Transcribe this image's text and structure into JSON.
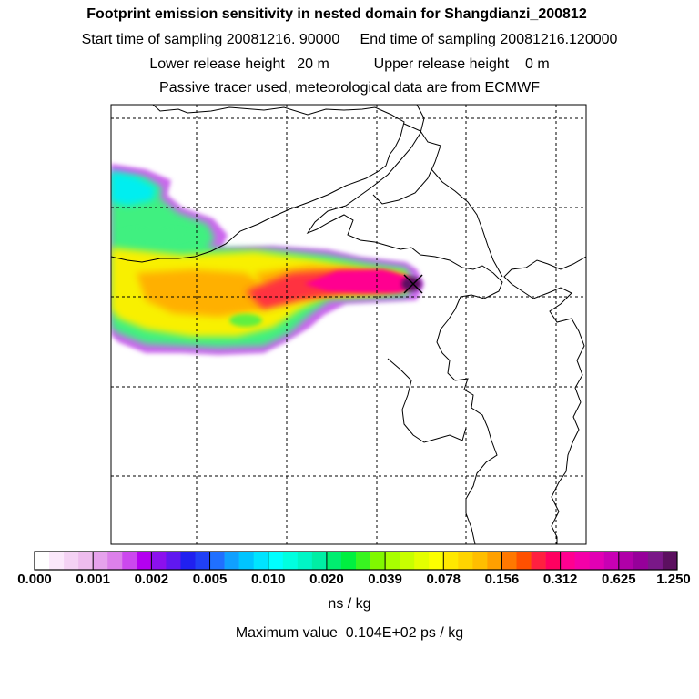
{
  "title": "Footprint emission sensitivity in nested domain for Shangdianzi_200812",
  "sampling_line": "Start time of sampling 20081216. 90000     End time of sampling 20081216.120000",
  "release_line": "Lower release height   20 m           Upper release height    0 m",
  "tracer_line": "Passive tracer used, meteorological data are from ECMWF",
  "colorbar": {
    "tick_labels": [
      "0.000",
      "0.001",
      "0.002",
      "0.005",
      "0.010",
      "0.020",
      "0.039",
      "0.078",
      "0.156",
      "0.312",
      "0.625",
      "1.250"
    ],
    "bin_colors": [
      [
        "#ffffff",
        "#fbe8fb",
        "#f4d2f4",
        "#eebcee"
      ],
      [
        "#e6a2ec",
        "#dc80ea",
        "#cc48ee",
        "#b400f0"
      ],
      [
        "#8c10ee",
        "#6018f0",
        "#2020f0",
        "#2040f6"
      ],
      [
        "#2070ff",
        "#10a0ff",
        "#00c4ff",
        "#00e4ff"
      ],
      [
        "#00ffff",
        "#00ffe0",
        "#00f6c6",
        "#00eea4"
      ],
      [
        "#00ee70",
        "#00f040",
        "#38f420",
        "#80f800"
      ],
      [
        "#a8ff00",
        "#c8ff00",
        "#e4ff00",
        "#fcff00"
      ],
      [
        "#ffe800",
        "#ffd400",
        "#ffbe00",
        "#ffa000"
      ],
      [
        "#ff7800",
        "#ff5000",
        "#ff2040",
        "#ff0060"
      ],
      [
        "#ff0090",
        "#f400a8",
        "#e200b4",
        "#c800b4"
      ],
      [
        "#b000a8",
        "#96009a",
        "#7a1888",
        "#5c1060"
      ]
    ]
  },
  "units": "ns / kg",
  "max_value_line": "Maximum value  0.104E+02 ps / kg",
  "receptor_marker": "x-icon"
}
